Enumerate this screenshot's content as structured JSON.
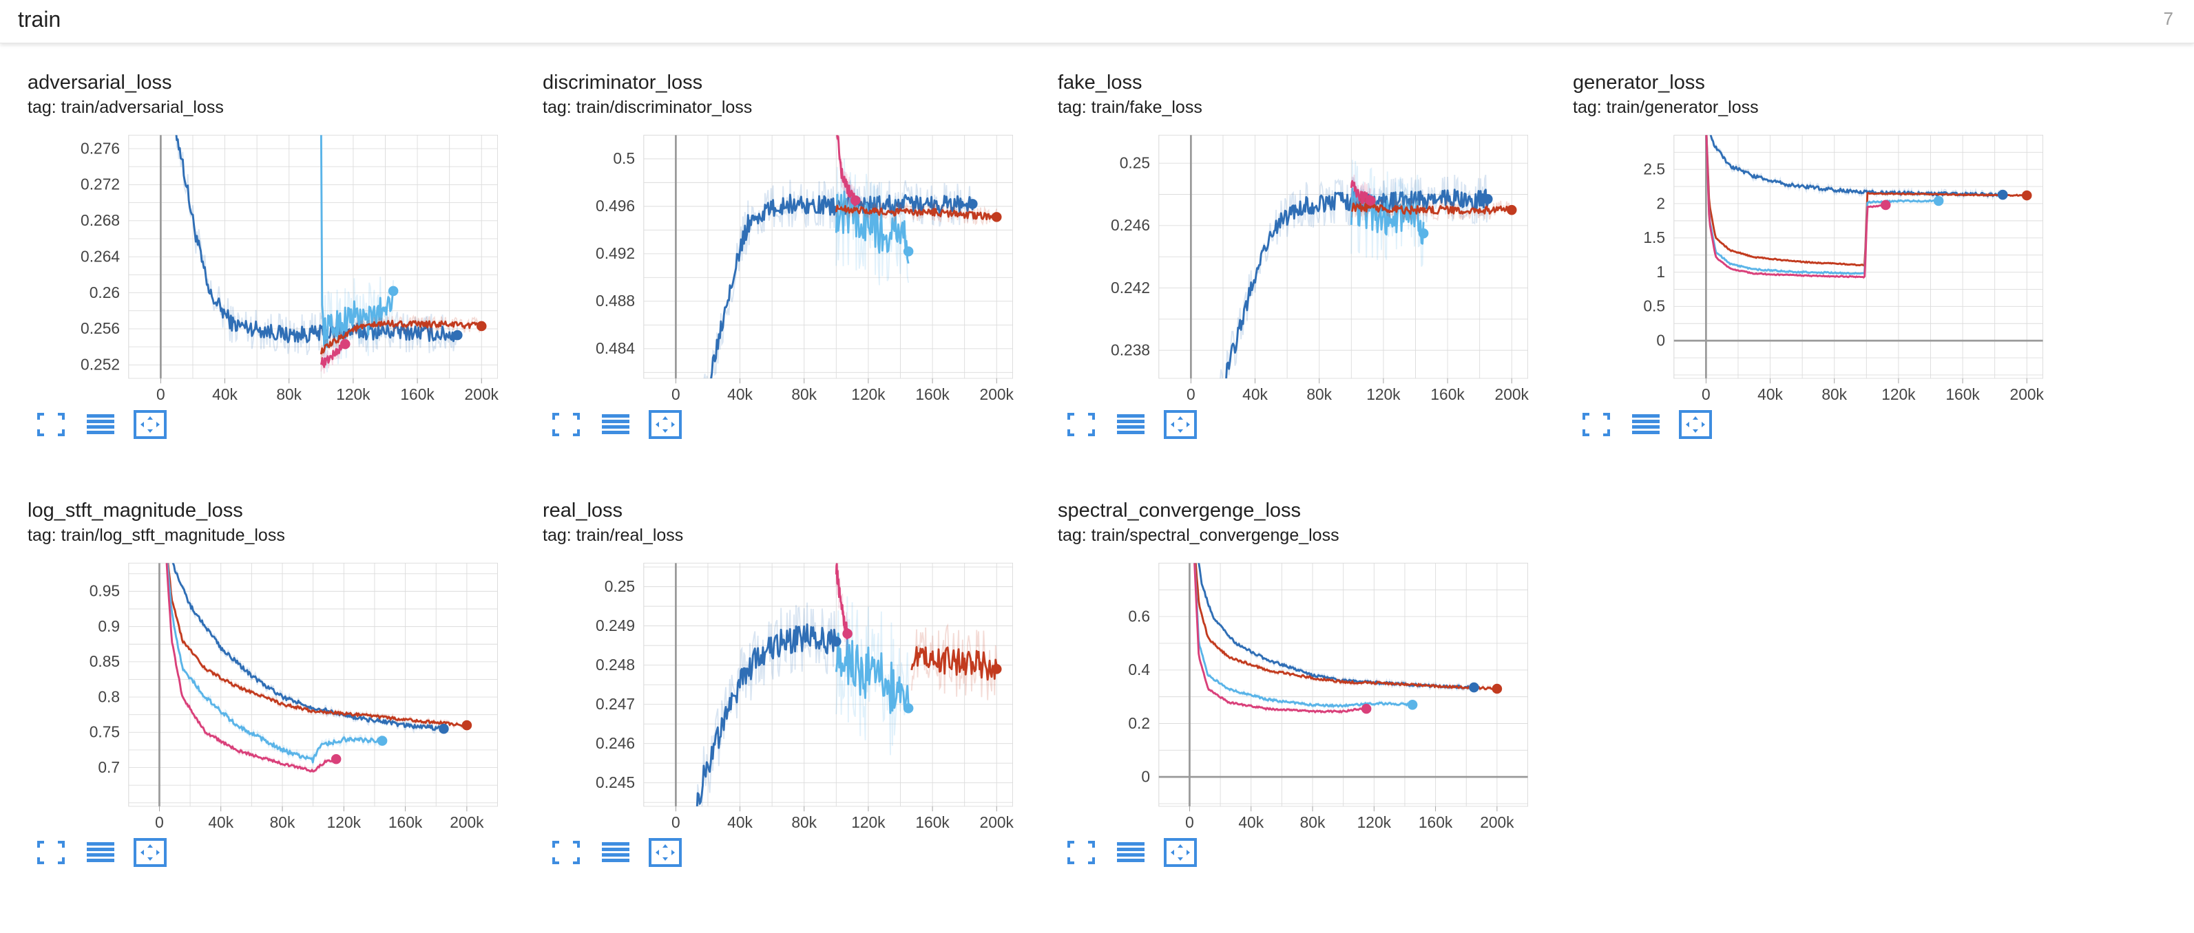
{
  "header": {
    "title": "train",
    "count": "7"
  },
  "colors": {
    "series_1": "#2f6eb5",
    "series_2": "#c23b1f",
    "series_3": "#5ab4e8",
    "series_4": "#d9407a",
    "grid": "#dcdcdc",
    "axis": "#9a9a9a",
    "button": "#3e8de0"
  },
  "buttons": {
    "icons": [
      "fullscreen-icon",
      "toggle-log-scale-icon",
      "fit-domain-icon"
    ]
  },
  "chart_data": [
    {
      "type": "line",
      "title": "adversarial_loss",
      "tag": "tag: train/adversarial_loss",
      "xlim": [
        -20000,
        210000
      ],
      "ylim": [
        0.2505,
        0.2775
      ],
      "xticks": [
        0,
        40000,
        80000,
        120000,
        160000,
        200000
      ],
      "xtick_labels": [
        "0",
        "40k",
        "80k",
        "120k",
        "160k",
        "200k"
      ],
      "yticks": [
        0.252,
        0.256,
        0.26,
        0.264,
        0.268,
        0.272,
        0.276
      ],
      "ytick_labels": [
        "0.252",
        "0.256",
        "0.26",
        "0.264",
        "0.268",
        "0.272",
        "0.276"
      ],
      "series": [
        {
          "color": "#2f6eb5",
          "noise": 0.0009,
          "x": [
            0,
            12000,
            20000,
            30000,
            45000,
            60000,
            80000,
            100000,
            120000,
            150000,
            185000
          ],
          "y": [
            0.285,
            0.276,
            0.268,
            0.26,
            0.2565,
            0.256,
            0.2553,
            0.2555,
            0.2557,
            0.2557,
            0.2553
          ]
        },
        {
          "color": "#5ab4e8",
          "noise": 0.0018,
          "x": [
            100000,
            100600,
            102000,
            110000,
            120000,
            130000,
            140000,
            145000
          ],
          "y": [
            0.28,
            0.2575,
            0.2555,
            0.2565,
            0.2575,
            0.2568,
            0.2585,
            0.2602
          ]
        },
        {
          "color": "#d9407a",
          "noise": 0.0005,
          "x": [
            100000,
            102000,
            105000,
            110000,
            115000
          ],
          "y": [
            0.2525,
            0.2522,
            0.2527,
            0.2535,
            0.2543
          ]
        },
        {
          "color": "#c23b1f",
          "noise": 0.00035,
          "x": [
            100000,
            120000,
            140000,
            160000,
            180000,
            200000
          ],
          "y": [
            0.2535,
            0.256,
            0.2566,
            0.2565,
            0.2565,
            0.2563
          ]
        }
      ]
    },
    {
      "type": "line",
      "title": "discriminator_loss",
      "tag": "tag: train/discriminator_loss",
      "xlim": [
        -20000,
        210000
      ],
      "ylim": [
        0.4815,
        0.502
      ],
      "xticks": [
        0,
        40000,
        80000,
        120000,
        160000,
        200000
      ],
      "xtick_labels": [
        "0",
        "40k",
        "80k",
        "120k",
        "160k",
        "200k"
      ],
      "yticks": [
        0.484,
        0.488,
        0.492,
        0.496,
        0.5
      ],
      "ytick_labels": [
        "0.484",
        "0.488",
        "0.492",
        "0.496",
        "0.5"
      ],
      "series": [
        {
          "color": "#2f6eb5",
          "noise": 0.0008,
          "x": [
            15000,
            25000,
            35000,
            45000,
            55000,
            70000,
            100000,
            150000,
            185000
          ],
          "y": [
            0.478,
            0.484,
            0.49,
            0.4945,
            0.4955,
            0.4962,
            0.496,
            0.4962,
            0.4962
          ]
        },
        {
          "color": "#5ab4e8",
          "noise": 0.0018,
          "x": [
            100000,
            110000,
            120000,
            130000,
            140000,
            145000
          ],
          "y": [
            0.4955,
            0.4955,
            0.4945,
            0.4935,
            0.4945,
            0.4922
          ]
        },
        {
          "color": "#d9407a",
          "noise": 0.0005,
          "x": [
            100000,
            103000,
            107000,
            112000
          ],
          "y": [
            0.503,
            0.499,
            0.4975,
            0.4965
          ]
        },
        {
          "color": "#c23b1f",
          "noise": 0.0003,
          "x": [
            100000,
            130000,
            160000,
            200000
          ],
          "y": [
            0.4958,
            0.4955,
            0.4955,
            0.4951
          ]
        }
      ]
    },
    {
      "type": "line",
      "title": "fake_loss",
      "tag": "tag: train/fake_loss",
      "xlim": [
        -20000,
        210000
      ],
      "ylim": [
        0.2362,
        0.2518
      ],
      "xticks": [
        0,
        40000,
        80000,
        120000,
        160000,
        200000
      ],
      "xtick_labels": [
        "0",
        "40k",
        "80k",
        "120k",
        "160k",
        "200k"
      ],
      "yticks": [
        0.238,
        0.242,
        0.246,
        0.25
      ],
      "ytick_labels": [
        "0.238",
        "0.242",
        "0.246",
        "0.25"
      ],
      "series": [
        {
          "color": "#2f6eb5",
          "noise": 0.0006,
          "x": [
            15000,
            25000,
            35000,
            45000,
            55000,
            70000,
            90000,
            120000,
            150000,
            185000
          ],
          "y": [
            0.234,
            0.2375,
            0.241,
            0.2445,
            0.2462,
            0.2472,
            0.2476,
            0.2475,
            0.2477,
            0.2477
          ]
        },
        {
          "color": "#5ab4e8",
          "noise": 0.0012,
          "x": [
            100000,
            110000,
            120000,
            130000,
            140000,
            145000
          ],
          "y": [
            0.2472,
            0.247,
            0.2465,
            0.2462,
            0.2468,
            0.2455
          ]
        },
        {
          "color": "#d9407a",
          "noise": 0.0004,
          "x": [
            100000,
            103000,
            107000,
            112000
          ],
          "y": [
            0.2488,
            0.2482,
            0.2478,
            0.2476
          ]
        },
        {
          "color": "#c23b1f",
          "noise": 0.00025,
          "x": [
            100000,
            130000,
            160000,
            200000
          ],
          "y": [
            0.2472,
            0.247,
            0.247,
            0.247
          ]
        }
      ]
    },
    {
      "type": "line",
      "title": "generator_loss",
      "tag": "tag: train/generator_loss",
      "xlim": [
        -20000,
        210000
      ],
      "ylim": [
        -0.55,
        3.0
      ],
      "xticks": [
        0,
        40000,
        80000,
        120000,
        160000,
        200000
      ],
      "xtick_labels": [
        "0",
        "40k",
        "80k",
        "120k",
        "160k",
        "200k"
      ],
      "yticks": [
        0,
        0.5,
        1,
        1.5,
        2,
        2.5
      ],
      "ytick_labels": [
        "0",
        "0.5",
        "1",
        "1.5",
        "2",
        "2.5"
      ],
      "series": [
        {
          "color": "#2f6eb5",
          "noise": 0.025,
          "x": [
            0,
            5000,
            15000,
            30000,
            50000,
            80000,
            100000,
            130000,
            160000,
            185000
          ],
          "y": [
            3.2,
            2.85,
            2.55,
            2.4,
            2.28,
            2.2,
            2.17,
            2.15,
            2.14,
            2.13
          ]
        },
        {
          "color": "#c23b1f",
          "noise": 0.008,
          "x": [
            0,
            2000,
            6000,
            15000,
            30000,
            60000,
            99000,
            100500,
            130000,
            160000,
            200000
          ],
          "y": [
            3.2,
            2.0,
            1.5,
            1.32,
            1.22,
            1.15,
            1.1,
            2.15,
            2.14,
            2.13,
            2.12
          ]
        },
        {
          "color": "#5ab4e8",
          "noise": 0.01,
          "x": [
            0,
            2000,
            6000,
            15000,
            30000,
            60000,
            99000,
            100500,
            120000,
            145000
          ],
          "y": [
            3.2,
            1.8,
            1.3,
            1.12,
            1.04,
            1.0,
            0.98,
            2.02,
            2.04,
            2.04
          ]
        },
        {
          "color": "#d9407a",
          "noise": 0.008,
          "x": [
            0,
            2000,
            6000,
            15000,
            30000,
            60000,
            99000,
            100500,
            112000
          ],
          "y": [
            3.2,
            1.75,
            1.22,
            1.05,
            0.98,
            0.95,
            0.93,
            1.95,
            1.98
          ]
        }
      ]
    },
    {
      "type": "line",
      "title": "log_stft_magnitude_loss",
      "tag": "tag: train/log_stft_magnitude_loss",
      "xlim": [
        -20000,
        220000
      ],
      "ylim": [
        0.645,
        0.99
      ],
      "xticks": [
        0,
        40000,
        80000,
        120000,
        160000,
        200000
      ],
      "xtick_labels": [
        "0",
        "40k",
        "80k",
        "120k",
        "160k",
        "200k"
      ],
      "yticks": [
        0.7,
        0.75,
        0.8,
        0.85,
        0.9,
        0.95
      ],
      "ytick_labels": [
        "0.7",
        "0.75",
        "0.8",
        "0.85",
        "0.9",
        "0.95"
      ],
      "series": [
        {
          "color": "#2f6eb5",
          "noise": 0.003,
          "x": [
            3000,
            10000,
            20000,
            40000,
            60000,
            80000,
            100000,
            130000,
            160000,
            185000
          ],
          "y": [
            1.05,
            0.98,
            0.93,
            0.87,
            0.83,
            0.8,
            0.785,
            0.77,
            0.76,
            0.755
          ]
        },
        {
          "color": "#c23b1f",
          "noise": 0.002,
          "x": [
            3000,
            8000,
            15000,
            30000,
            50000,
            80000,
            100000,
            130000,
            160000,
            200000
          ],
          "y": [
            1.05,
            0.94,
            0.88,
            0.84,
            0.815,
            0.79,
            0.78,
            0.775,
            0.768,
            0.76
          ]
        },
        {
          "color": "#5ab4e8",
          "noise": 0.003,
          "x": [
            3000,
            8000,
            15000,
            30000,
            50000,
            80000,
            100000,
            104000,
            120000,
            145000
          ],
          "y": [
            1.05,
            0.92,
            0.84,
            0.8,
            0.76,
            0.725,
            0.71,
            0.73,
            0.74,
            0.738
          ]
        },
        {
          "color": "#d9407a",
          "noise": 0.002,
          "x": [
            3000,
            8000,
            15000,
            30000,
            50000,
            80000,
            100000,
            108000,
            115000
          ],
          "y": [
            1.05,
            0.88,
            0.8,
            0.75,
            0.725,
            0.705,
            0.695,
            0.708,
            0.712
          ]
        }
      ]
    },
    {
      "type": "line",
      "title": "real_loss",
      "tag": "tag: train/real_loss",
      "xlim": [
        -20000,
        210000
      ],
      "ylim": [
        0.2444,
        0.2506
      ],
      "xticks": [
        0,
        40000,
        80000,
        120000,
        160000,
        200000
      ],
      "xtick_labels": [
        "0",
        "40k",
        "80k",
        "120k",
        "160k",
        "200k"
      ],
      "yticks": [
        0.245,
        0.246,
        0.247,
        0.248,
        0.249,
        0.25
      ],
      "ytick_labels": [
        "0.245",
        "0.246",
        "0.247",
        "0.248",
        "0.249",
        "0.25"
      ],
      "series": [
        {
          "color": "#2f6eb5",
          "noise": 0.00035,
          "x": [
            13000,
            20000,
            30000,
            40000,
            50000,
            60000,
            80000,
            100000
          ],
          "y": [
            0.2445,
            0.2455,
            0.2465,
            0.2475,
            0.2482,
            0.2485,
            0.2487,
            0.2486
          ]
        },
        {
          "color": "#5ab4e8",
          "noise": 0.0007,
          "x": [
            100000,
            110000,
            120000,
            130000,
            140000,
            145000
          ],
          "y": [
            0.2485,
            0.248,
            0.2478,
            0.2476,
            0.2472,
            0.2469
          ]
        },
        {
          "color": "#d9407a",
          "noise": 0.0002,
          "x": [
            100000,
            103000,
            107000
          ],
          "y": [
            0.2505,
            0.2495,
            0.2488
          ]
        },
        {
          "color": "#c23b1f",
          "noise": 0.00035,
          "x": [
            147000,
            160000,
            180000,
            200000
          ],
          "y": [
            0.2482,
            0.2481,
            0.2481,
            0.2479
          ]
        }
      ]
    },
    {
      "type": "line",
      "title": "spectral_convergenge_loss",
      "tag": "tag: train/spectral_convergenge_loss",
      "xlim": [
        -20000,
        220000
      ],
      "ylim": [
        -0.11,
        0.8
      ],
      "xticks": [
        0,
        40000,
        80000,
        120000,
        160000,
        200000
      ],
      "xtick_labels": [
        "0",
        "40k",
        "80k",
        "120k",
        "160k",
        "200k"
      ],
      "yticks": [
        0,
        0.2,
        0.4,
        0.6
      ],
      "ytick_labels": [
        "0",
        "0.2",
        "0.4",
        "0.6"
      ],
      "series": [
        {
          "color": "#2f6eb5",
          "noise": 0.005,
          "x": [
            2000,
            8000,
            15000,
            30000,
            50000,
            80000,
            100000,
            130000,
            160000,
            185000
          ],
          "y": [
            0.95,
            0.72,
            0.6,
            0.5,
            0.44,
            0.38,
            0.36,
            0.35,
            0.34,
            0.335
          ]
        },
        {
          "color": "#c23b1f",
          "noise": 0.004,
          "x": [
            2000,
            6000,
            12000,
            25000,
            50000,
            80000,
            100000,
            130000,
            160000,
            200000
          ],
          "y": [
            0.95,
            0.65,
            0.52,
            0.45,
            0.4,
            0.37,
            0.355,
            0.35,
            0.34,
            0.33
          ]
        },
        {
          "color": "#5ab4e8",
          "noise": 0.004,
          "x": [
            2000,
            6000,
            12000,
            25000,
            50000,
            80000,
            100000,
            104000,
            125000,
            145000
          ],
          "y": [
            0.95,
            0.5,
            0.38,
            0.33,
            0.29,
            0.27,
            0.265,
            0.27,
            0.275,
            0.27
          ]
        },
        {
          "color": "#d9407a",
          "noise": 0.003,
          "x": [
            2000,
            6000,
            12000,
            25000,
            50000,
            80000,
            100000,
            108000,
            115000
          ],
          "y": [
            0.95,
            0.45,
            0.33,
            0.28,
            0.255,
            0.245,
            0.245,
            0.252,
            0.255
          ]
        }
      ]
    }
  ]
}
